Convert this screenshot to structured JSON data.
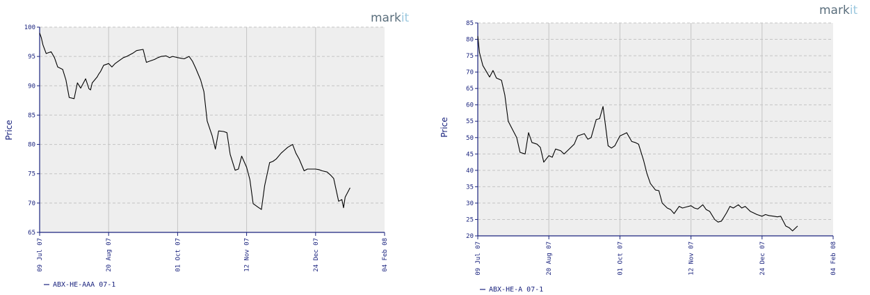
{
  "colors": {
    "plot_bg": "#eeeeee",
    "grid": "#c4c4c4",
    "axis": "#1a237e",
    "line": "#000000",
    "brand": "#5a6e7c",
    "brand_accent": "#9cc8df"
  },
  "brand": {
    "main": "mark",
    "accent": "it"
  },
  "chart_data": [
    {
      "type": "line",
      "ylabel": "Price",
      "ylim": [
        65,
        100
      ],
      "yticks": [
        65,
        70,
        75,
        80,
        85,
        90,
        95,
        100
      ],
      "xlim": [
        "2007-07-09",
        "2008-02-04"
      ],
      "xticks": [
        "2007-07-09",
        "2007-08-20",
        "2007-10-01",
        "2007-11-12",
        "2007-12-24",
        "2008-02-04"
      ],
      "xtick_labels": [
        "09 Jul 07",
        "20 Aug 07",
        "01 Oct 07",
        "12 Nov 07",
        "24 Dec 07",
        "04 Feb 08"
      ],
      "grid": true,
      "legend_position": "bottom-left",
      "series": [
        {
          "name": "ABX-HE-AAA 07-1",
          "x": [
            "2007-07-09",
            "2007-07-10",
            "2007-07-11",
            "2007-07-13",
            "2007-07-16",
            "2007-07-18",
            "2007-07-20",
            "2007-07-23",
            "2007-07-25",
            "2007-07-27",
            "2007-07-30",
            "2007-08-01",
            "2007-08-03",
            "2007-08-06",
            "2007-08-08",
            "2007-08-09",
            "2007-08-10",
            "2007-08-13",
            "2007-08-14",
            "2007-08-15",
            "2007-08-17",
            "2007-08-20",
            "2007-08-22",
            "2007-08-24",
            "2007-08-27",
            "2007-08-29",
            "2007-08-31",
            "2007-09-04",
            "2007-09-06",
            "2007-09-10",
            "2007-09-12",
            "2007-09-14",
            "2007-09-17",
            "2007-09-19",
            "2007-09-21",
            "2007-09-24",
            "2007-09-26",
            "2007-09-28",
            "2007-10-01",
            "2007-10-03",
            "2007-10-05",
            "2007-10-08",
            "2007-10-10",
            "2007-10-12",
            "2007-10-15",
            "2007-10-17",
            "2007-10-19",
            "2007-10-22",
            "2007-10-24",
            "2007-10-26",
            "2007-10-29",
            "2007-10-31",
            "2007-11-02",
            "2007-11-05",
            "2007-11-07",
            "2007-11-09",
            "2007-11-12",
            "2007-11-14",
            "2007-11-16",
            "2007-11-19",
            "2007-11-21",
            "2007-11-23",
            "2007-11-26",
            "2007-11-28",
            "2007-11-30",
            "2007-12-03",
            "2007-12-05",
            "2007-12-07",
            "2007-12-10",
            "2007-12-12",
            "2007-12-14",
            "2007-12-17",
            "2007-12-19",
            "2007-12-21",
            "2007-12-24",
            "2007-12-26",
            "2007-12-28",
            "2007-12-31",
            "2008-01-02",
            "2008-01-04",
            "2008-01-07",
            "2008-01-09",
            "2008-01-10",
            "2008-01-11",
            "2008-01-14"
          ],
          "y": [
            99,
            98.2,
            97,
            95.5,
            95.8,
            94.8,
            93.2,
            92.8,
            91,
            88,
            87.8,
            90.5,
            89.6,
            91.2,
            89.5,
            89.3,
            90.5,
            91.5,
            92,
            92.4,
            93.5,
            93.8,
            93.2,
            93.8,
            94.4,
            94.8,
            95,
            95.6,
            96,
            96.2,
            94,
            94.2,
            94.5,
            94.8,
            95,
            95.1,
            94.8,
            95,
            94.8,
            94.7,
            94.6,
            95,
            94.2,
            93,
            91,
            89,
            84,
            81.5,
            79.2,
            82.3,
            82.2,
            82,
            78.3,
            75.6,
            75.8,
            78,
            76.1,
            74,
            69.9,
            69.3,
            68.9,
            73,
            76.9,
            77.1,
            77.5,
            78.5,
            79,
            79.5,
            80,
            78.5,
            77.5,
            75.5,
            75.8,
            75.8,
            75.8,
            75.7,
            75.5,
            75.3,
            74.8,
            74.2,
            70.3,
            70.6,
            69.2,
            71,
            72.6
          ]
        }
      ]
    },
    {
      "type": "line",
      "ylabel": "Price",
      "ylim": [
        20,
        85
      ],
      "yticks": [
        20,
        25,
        30,
        35,
        40,
        45,
        50,
        55,
        60,
        65,
        70,
        75,
        80,
        85
      ],
      "xlim": [
        "2007-07-09",
        "2008-02-04"
      ],
      "xticks": [
        "2007-07-09",
        "2007-08-20",
        "2007-10-01",
        "2007-11-12",
        "2007-12-24",
        "2008-02-04"
      ],
      "xtick_labels": [
        "09 Jul 07",
        "20 Aug 07",
        "01 Oct 07",
        "12 Nov 07",
        "24 Dec 07",
        "04 Feb 08"
      ],
      "grid": true,
      "legend_position": "bottom-left",
      "series": [
        {
          "name": "ABX-HE-A 07-1",
          "x": [
            "2007-07-09",
            "2007-07-10",
            "2007-07-12",
            "2007-07-16",
            "2007-07-18",
            "2007-07-20",
            "2007-07-23",
            "2007-07-25",
            "2007-07-27",
            "2007-07-30",
            "2007-08-01",
            "2007-08-03",
            "2007-08-06",
            "2007-08-08",
            "2007-08-10",
            "2007-08-13",
            "2007-08-15",
            "2007-08-17",
            "2007-08-20",
            "2007-08-22",
            "2007-08-24",
            "2007-08-27",
            "2007-08-29",
            "2007-08-31",
            "2007-09-04",
            "2007-09-06",
            "2007-09-10",
            "2007-09-12",
            "2007-09-14",
            "2007-09-17",
            "2007-09-19",
            "2007-09-21",
            "2007-09-24",
            "2007-09-26",
            "2007-09-28",
            "2007-10-01",
            "2007-10-03",
            "2007-10-05",
            "2007-10-08",
            "2007-10-10",
            "2007-10-12",
            "2007-10-15",
            "2007-10-17",
            "2007-10-19",
            "2007-10-22",
            "2007-10-24",
            "2007-10-26",
            "2007-10-29",
            "2007-10-31",
            "2007-11-02",
            "2007-11-05",
            "2007-11-07",
            "2007-11-09",
            "2007-11-12",
            "2007-11-14",
            "2007-11-16",
            "2007-11-19",
            "2007-11-21",
            "2007-11-23",
            "2007-11-26",
            "2007-11-28",
            "2007-11-30",
            "2007-12-03",
            "2007-12-05",
            "2007-12-07",
            "2007-12-10",
            "2007-12-12",
            "2007-12-14",
            "2007-12-17",
            "2007-12-19",
            "2007-12-21",
            "2007-12-24",
            "2007-12-26",
            "2007-12-28",
            "2007-12-31",
            "2008-01-02",
            "2008-01-04",
            "2008-01-07",
            "2008-01-09",
            "2008-01-11",
            "2008-01-14"
          ],
          "y": [
            81,
            76,
            72,
            68.5,
            70.5,
            68.2,
            67.5,
            63,
            55,
            52,
            50,
            45.5,
            45,
            51.5,
            48.5,
            48,
            47,
            42.5,
            44.5,
            44,
            46.5,
            46,
            45,
            46,
            48,
            50.5,
            51.2,
            49.5,
            50,
            55.5,
            55.8,
            59.5,
            47.5,
            46.8,
            47.5,
            50.5,
            51,
            51.5,
            48.8,
            48.5,
            48,
            43,
            39,
            36,
            34,
            33.8,
            30,
            28.5,
            28,
            26.8,
            29,
            28.5,
            28.8,
            29.2,
            28.5,
            28.2,
            29.5,
            28,
            27.5,
            25,
            24.2,
            24.5,
            27,
            29,
            28.5,
            29.5,
            28.5,
            29,
            27.5,
            27,
            26.5,
            26,
            26.5,
            26.2,
            26,
            25.8,
            26,
            23,
            22.5,
            21.5,
            23
          ]
        }
      ]
    }
  ]
}
